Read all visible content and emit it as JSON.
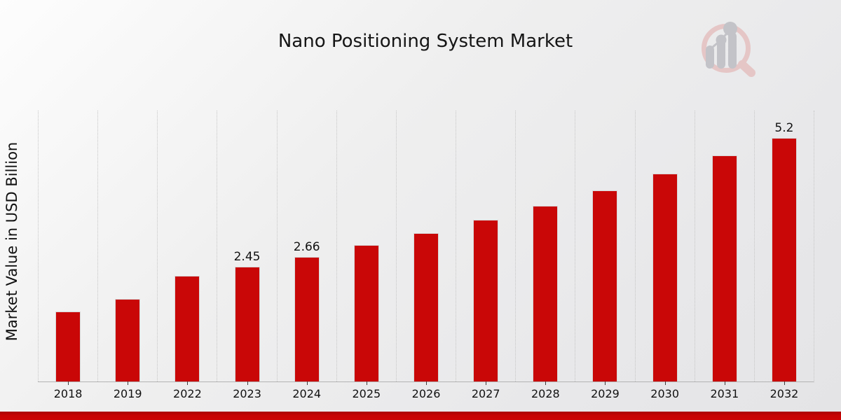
{
  "header": {
    "title": "Nano Positioning System Market"
  },
  "logo": {
    "icon": "magnifier-bar-chart-logo",
    "ring_color": "#e5c6c6",
    "glyph_color": "#c3c3c8"
  },
  "chart": {
    "y_axis_label": "Market Value in USD Billion",
    "bar_color": "#c90707",
    "bar_edge_color": "#d8d8d8",
    "gridline_color": "#c6c6c6",
    "axis_line_color": "#b3b3b3",
    "footer_band_color": "#c60404"
  },
  "chart_data": {
    "type": "bar",
    "title": "Nano Positioning System Market",
    "xlabel": "",
    "ylabel": "Market Value in USD Billion",
    "ylim": [
      0,
      5.78
    ],
    "grid": "vertical dotted lines between categories",
    "legend": "none",
    "categories": [
      "2018",
      "2019",
      "2022",
      "2023",
      "2024",
      "2025",
      "2026",
      "2027",
      "2028",
      "2029",
      "2030",
      "2031",
      "2032"
    ],
    "values": [
      1.49,
      1.76,
      2.26,
      2.45,
      2.66,
      2.91,
      3.17,
      3.45,
      3.75,
      4.07,
      4.43,
      4.82,
      5.2
    ],
    "shown_data_labels": [
      {
        "category": "2023",
        "label": "2.45"
      },
      {
        "category": "2024",
        "label": "2.66"
      },
      {
        "category": "2032",
        "label": "5.2"
      }
    ]
  }
}
